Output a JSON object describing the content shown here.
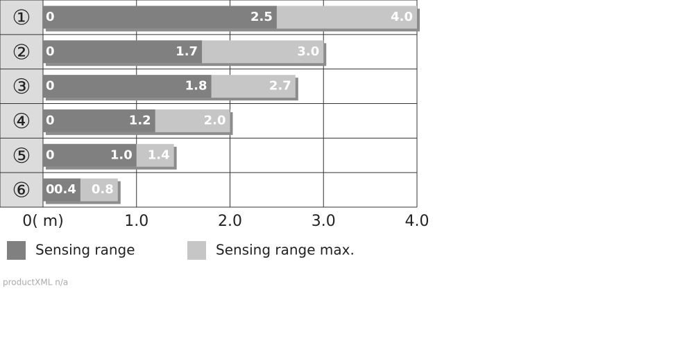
{
  "chart_data": {
    "type": "bar",
    "orientation": "horizontal",
    "categories": [
      "①",
      "②",
      "③",
      "④",
      "⑤",
      "⑥"
    ],
    "start_values": [
      0,
      0,
      0,
      0,
      0,
      0
    ],
    "series": [
      {
        "name": "Sensing range max.",
        "color": "#c6c6c6",
        "values": [
          4.0,
          3.0,
          2.7,
          2.0,
          1.4,
          0.8
        ],
        "value_labels": [
          "4.0",
          "3.0",
          "2.7",
          "2.0",
          "1.4",
          "0.8"
        ]
      },
      {
        "name": "Sensing range",
        "color": "#808080",
        "values": [
          2.5,
          1.7,
          1.8,
          1.2,
          1.0,
          0.4
        ],
        "value_labels": [
          "2.5",
          "1.7",
          "1.8",
          "1.2",
          "1.0",
          "0.4"
        ]
      }
    ],
    "xlim": [
      0,
      4
    ],
    "xticks": [
      {
        "value": 0,
        "label": "0( m)"
      },
      {
        "value": 1,
        "label": "1.0"
      },
      {
        "value": 2,
        "label": "2.0"
      },
      {
        "value": 3,
        "label": "3.0"
      },
      {
        "value": 4,
        "label": "4.0"
      }
    ],
    "grid": true,
    "footnote": "productXML n/a"
  }
}
